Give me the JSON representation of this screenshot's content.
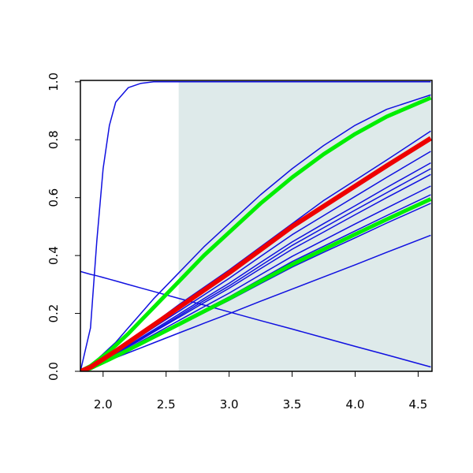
{
  "chart_data": {
    "type": "line",
    "x": [
      1.82,
      1.9,
      1.95,
      2.0,
      2.05,
      2.1,
      2.2,
      2.3,
      2.4,
      2.6,
      2.8,
      3.0,
      3.25,
      3.5,
      3.75,
      4.0,
      4.25,
      4.6
    ],
    "xlim": [
      1.82,
      4.61
    ],
    "xticks": [
      {
        "value": 2,
        "label": "2.0"
      },
      2.5,
      {
        "value": 3,
        "label": "3.0"
      },
      3.5,
      {
        "value": 4,
        "label": "4.0"
      },
      4.5
    ],
    "ylim": [
      0,
      1.005
    ],
    "yticks": [
      {
        "value": 0,
        "label": "0.0"
      },
      0.2,
      0.4,
      0.6,
      0.8,
      {
        "value": 1,
        "label": "1.0"
      }
    ],
    "shade": {
      "xlim": [
        2.6,
        4.61
      ],
      "ylim": [
        0,
        1
      ],
      "color": "#deeaea"
    },
    "series": [
      {
        "color": "#1010e0",
        "width": 1.5,
        "values": [
          0,
          0.15,
          0.45,
          0.7,
          0.85,
          0.93,
          0.98,
          0.995,
          1,
          1,
          1,
          1,
          1,
          1,
          1,
          1,
          1,
          1
        ]
      },
      {
        "color": "#1010e0",
        "width": 1.5,
        "values": [
          0.345,
          0.335,
          0.33,
          0.324,
          0.318,
          0.312,
          0.3,
          0.288,
          0.276,
          0.252,
          0.229,
          0.205,
          0.175,
          0.146,
          0.116,
          0.086,
          0.057,
          0.015
        ]
      },
      {
        "color": "#1010e0",
        "width": 1.5,
        "values": [
          0,
          0.02,
          0.04,
          0.06,
          0.08,
          0.1,
          0.15,
          0.2,
          0.25,
          0.34,
          0.43,
          0.51,
          0.61,
          0.7,
          0.78,
          0.85,
          0.905,
          0.955
        ]
      },
      {
        "color": "#1010e0",
        "width": 1.5,
        "values": [
          0,
          0.015,
          0.03,
          0.045,
          0.06,
          0.075,
          0.105,
          0.135,
          0.165,
          0.23,
          0.29,
          0.35,
          0.43,
          0.51,
          0.59,
          0.66,
          0.73,
          0.83
        ]
      },
      {
        "color": "#1010e0",
        "width": 1.5,
        "values": [
          0,
          0.013,
          0.026,
          0.04,
          0.053,
          0.066,
          0.094,
          0.122,
          0.151,
          0.207,
          0.264,
          0.321,
          0.397,
          0.472,
          0.538,
          0.604,
          0.67,
          0.76
        ]
      },
      {
        "color": "#1010e0",
        "width": 1.5,
        "values": [
          0,
          0.013,
          0.025,
          0.038,
          0.05,
          0.063,
          0.089,
          0.116,
          0.143,
          0.197,
          0.251,
          0.304,
          0.376,
          0.447,
          0.51,
          0.572,
          0.635,
          0.72
        ]
      },
      {
        "color": "#1010e0",
        "width": 1.5,
        "values": [
          0,
          0.012,
          0.024,
          0.037,
          0.049,
          0.061,
          0.087,
          0.113,
          0.139,
          0.191,
          0.244,
          0.295,
          0.365,
          0.435,
          0.496,
          0.557,
          0.617,
          0.7
        ]
      },
      {
        "color": "#1010e0",
        "width": 1.5,
        "values": [
          0,
          0.012,
          0.024,
          0.035,
          0.047,
          0.059,
          0.084,
          0.109,
          0.135,
          0.186,
          0.237,
          0.287,
          0.355,
          0.422,
          0.481,
          0.541,
          0.6,
          0.68
        ]
      },
      {
        "color": "#1010e0",
        "width": 1.5,
        "values": [
          0,
          0.011,
          0.022,
          0.033,
          0.045,
          0.056,
          0.079,
          0.103,
          0.127,
          0.175,
          0.223,
          0.27,
          0.334,
          0.397,
          0.453,
          0.509,
          0.564,
          0.64
        ]
      },
      {
        "color": "#1010e0",
        "width": 1.5,
        "values": [
          0,
          0.011,
          0.021,
          0.032,
          0.042,
          0.053,
          0.076,
          0.098,
          0.121,
          0.167,
          0.212,
          0.257,
          0.318,
          0.379,
          0.432,
          0.485,
          0.538,
          0.61
        ]
      },
      {
        "color": "#1010e0",
        "width": 1.5,
        "values": [
          0,
          0.01,
          0.02,
          0.03,
          0.04,
          0.05,
          0.072,
          0.093,
          0.115,
          0.158,
          0.202,
          0.245,
          0.303,
          0.36,
          0.411,
          0.461,
          0.512,
          0.58
        ]
      },
      {
        "color": "#1010e0",
        "width": 1.5,
        "values": [
          0,
          0.014,
          0.022,
          0.03,
          0.039,
          0.047,
          0.064,
          0.081,
          0.098,
          0.132,
          0.166,
          0.199,
          0.242,
          0.284,
          0.326,
          0.368,
          0.411,
          0.47
        ]
      },
      {
        "color": "#00ee00",
        "width": 5,
        "values": [
          0,
          0.018,
          0.035,
          0.052,
          0.07,
          0.09,
          0.13,
          0.175,
          0.22,
          0.31,
          0.4,
          0.48,
          0.58,
          0.67,
          0.75,
          0.82,
          0.88,
          0.945
        ]
      },
      {
        "color": "#00ee00",
        "width": 5,
        "values": [
          0,
          0.01,
          0.021,
          0.031,
          0.041,
          0.052,
          0.074,
          0.096,
          0.118,
          0.162,
          0.207,
          0.251,
          0.311,
          0.369,
          0.421,
          0.473,
          0.525,
          0.595
        ]
      },
      {
        "color": "#ee0000",
        "width": 6,
        "values": [
          0,
          0.014,
          0.028,
          0.042,
          0.056,
          0.07,
          0.1,
          0.13,
          0.16,
          0.22,
          0.28,
          0.34,
          0.42,
          0.5,
          0.57,
          0.64,
          0.71,
          0.805
        ]
      }
    ]
  }
}
